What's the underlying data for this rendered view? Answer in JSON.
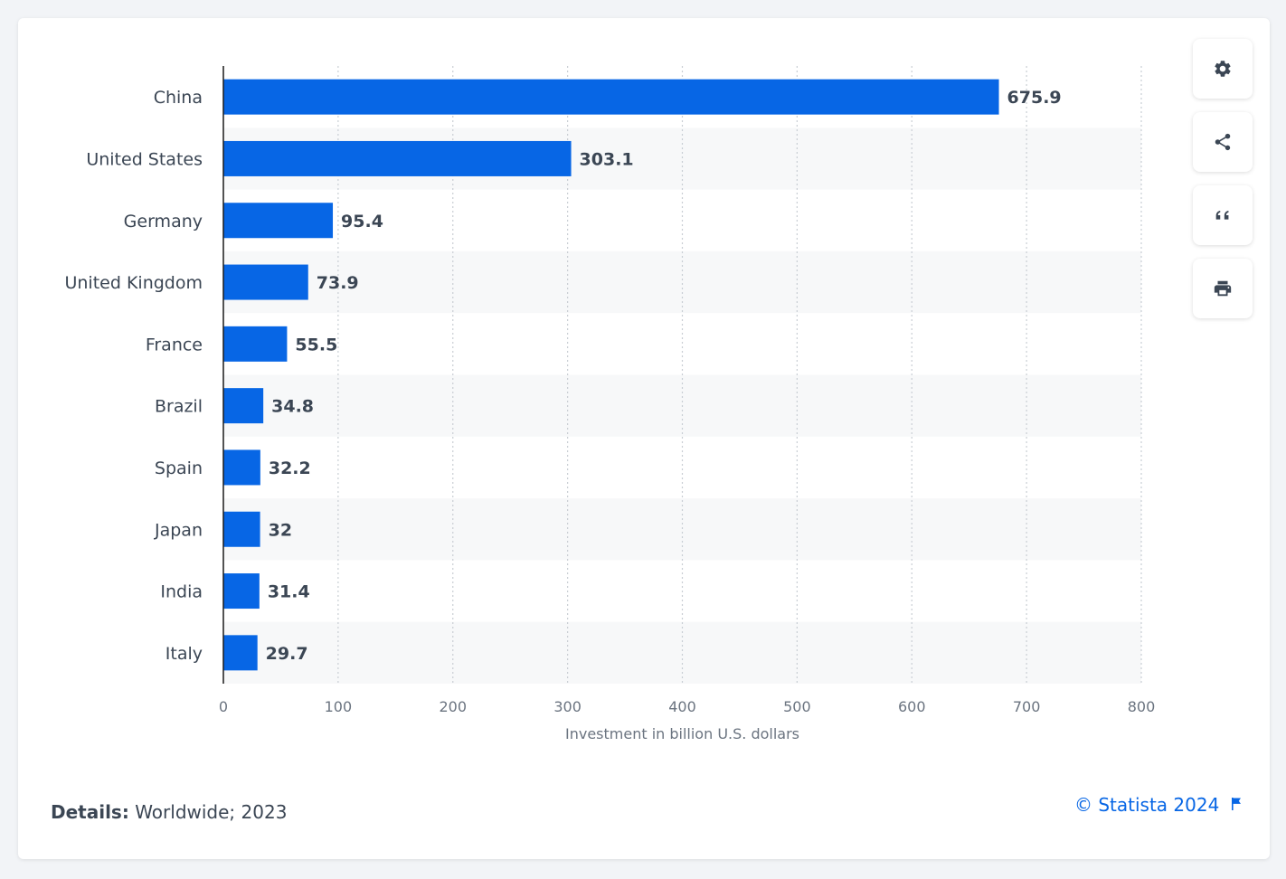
{
  "colors": {
    "bar": "#0766e5",
    "band": "#f7f8f9",
    "axis": "#1a1a1a",
    "grid": "#c9ced4",
    "label": "#3b4654",
    "tick": "#6b7480",
    "icon": "#3b4654",
    "link": "#0766e5"
  },
  "chart_data": {
    "type": "bar",
    "orientation": "horizontal",
    "title": "",
    "categories": [
      "China",
      "United States",
      "Germany",
      "United Kingdom",
      "France",
      "Brazil",
      "Spain",
      "Japan",
      "India",
      "Italy"
    ],
    "values": [
      675.9,
      303.1,
      95.4,
      73.9,
      55.5,
      34.8,
      32.2,
      32,
      31.4,
      29.7
    ],
    "value_labels": [
      "675.9",
      "303.1",
      "95.4",
      "73.9",
      "55.5",
      "34.8",
      "32.2",
      "32",
      "31.4",
      "29.7"
    ],
    "xlabel": "Investment in billion U.S. dollars",
    "ylabel": "",
    "xlim": [
      0,
      800
    ],
    "ticks": [
      "0",
      "100",
      "200",
      "300",
      "400",
      "500",
      "600",
      "700",
      "800"
    ],
    "tick_values": [
      0,
      100,
      200,
      300,
      400,
      500,
      600,
      700,
      800
    ],
    "grid": true,
    "legend": "none"
  },
  "toolbar": {
    "settings_icon": "gear-icon",
    "share_icon": "share-icon",
    "cite_icon": "quote-icon",
    "print_icon": "print-icon"
  },
  "footer": {
    "details_label": "Details:",
    "details_value": " Worldwide; 2023",
    "copyright": "© Statista 2024",
    "flag_icon": "flag-icon"
  }
}
